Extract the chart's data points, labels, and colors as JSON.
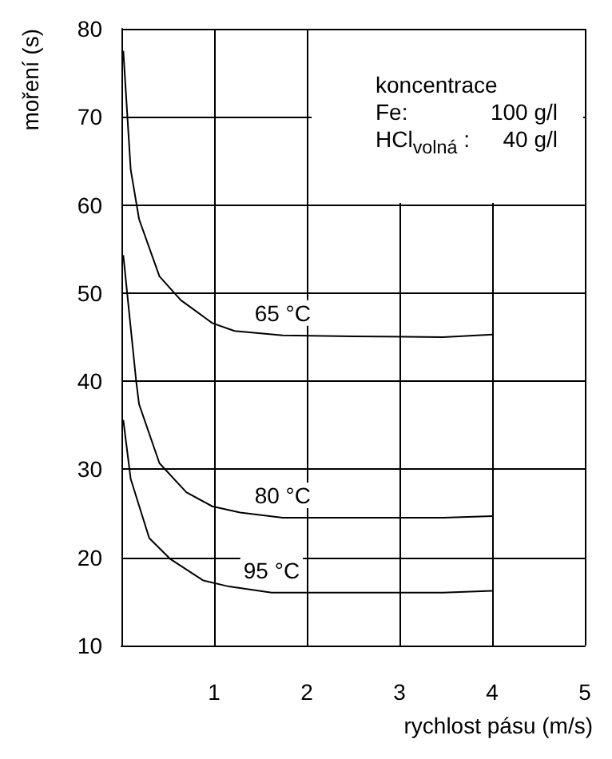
{
  "chart_data": {
    "type": "line",
    "xlabel": "rychlost pásu (m/s)",
    "ylabel": "moření (s)",
    "series": [
      {
        "name": "65 °C",
        "color": "#000000",
        "x": [
          0.02,
          0.1,
          0.19,
          0.41,
          0.64,
          0.98,
          1.22,
          1.74,
          2.5,
          3.47,
          4
        ],
        "values": [
          77.5,
          64,
          58.4,
          51.9,
          49.2,
          46.6,
          45.7,
          45.2,
          45.1,
          45.0,
          45.3
        ]
      },
      {
        "name": "80 °C",
        "color": "#000000",
        "x": [
          0.02,
          0.16,
          0.19,
          0.41,
          0.7,
          0.98,
          1.28,
          1.74,
          2.5,
          3.47,
          4
        ],
        "values": [
          54.3,
          39.9,
          37.4,
          30.7,
          27.4,
          25.8,
          25.1,
          24.5,
          24.5,
          24.5,
          24.7
        ]
      },
      {
        "name": "95 °C",
        "color": "#000000",
        "x": [
          0.02,
          0.1,
          0.3,
          0.53,
          0.88,
          1.16,
          1.62,
          2.5,
          3.47,
          4
        ],
        "values": [
          35.6,
          28.9,
          22.2,
          19.8,
          17.4,
          16.7,
          16.0,
          16.0,
          16.0,
          16.2
        ]
      }
    ],
    "xlim": [
      0,
      5
    ],
    "xticks": [
      1,
      2,
      3,
      4,
      5
    ],
    "ylim": [
      10,
      80
    ],
    "yticks": [
      10,
      20,
      30,
      40,
      50,
      60,
      70,
      80
    ],
    "grid": true,
    "marker": "none",
    "line_style": "solid",
    "annotations": [
      "koncentrace",
      "Fe:",
      "100 g/l",
      "HCl$_{volná}$ :",
      "40 g/l"
    ]
  }
}
